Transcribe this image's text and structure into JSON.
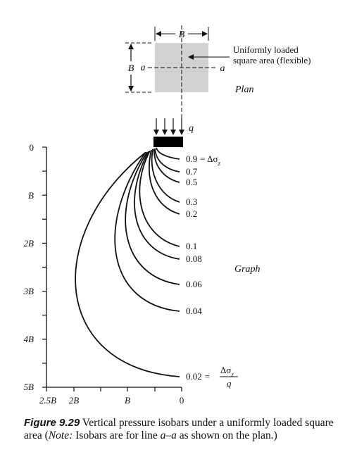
{
  "plan": {
    "width_label": "B",
    "height_label": "B",
    "section_left_label": "a",
    "section_right_label": "a",
    "annotation_line1": "Uniformly loaded",
    "annotation_line2": "square area (flexible)",
    "view_label": "Plan",
    "fill_color": "#d2d2d2"
  },
  "load_label": "q",
  "graph": {
    "view_label": "Graph",
    "y_ticks": [
      "0",
      "B",
      "2B",
      "3B",
      "4B",
      "5B"
    ],
    "x_ticks": [
      "2.5B",
      "2B",
      "B",
      "0"
    ]
  },
  "isobars": [
    {
      "value": "0.9",
      "suffix": "= Δσ",
      "subscript": "z"
    },
    {
      "value": "0.7"
    },
    {
      "value": "0.5"
    },
    {
      "value": "0.3"
    },
    {
      "value": "0.2"
    },
    {
      "value": "0.1"
    },
    {
      "value": "0.08"
    },
    {
      "value": "0.06"
    },
    {
      "value": "0.04"
    },
    {
      "value": "0.02",
      "suffix": "=",
      "frac_num": "Δσ",
      "frac_sub": "z",
      "frac_den": "q"
    }
  ],
  "caption": {
    "figure_label": "Figure 9.29",
    "text_1": " Vertical pressure isobars under a uniformly loaded square area (",
    "note_label": "Note:",
    "text_2": " Isobars are for line ",
    "line_label": "a–a",
    "text_3": " as shown on the plan.)"
  }
}
